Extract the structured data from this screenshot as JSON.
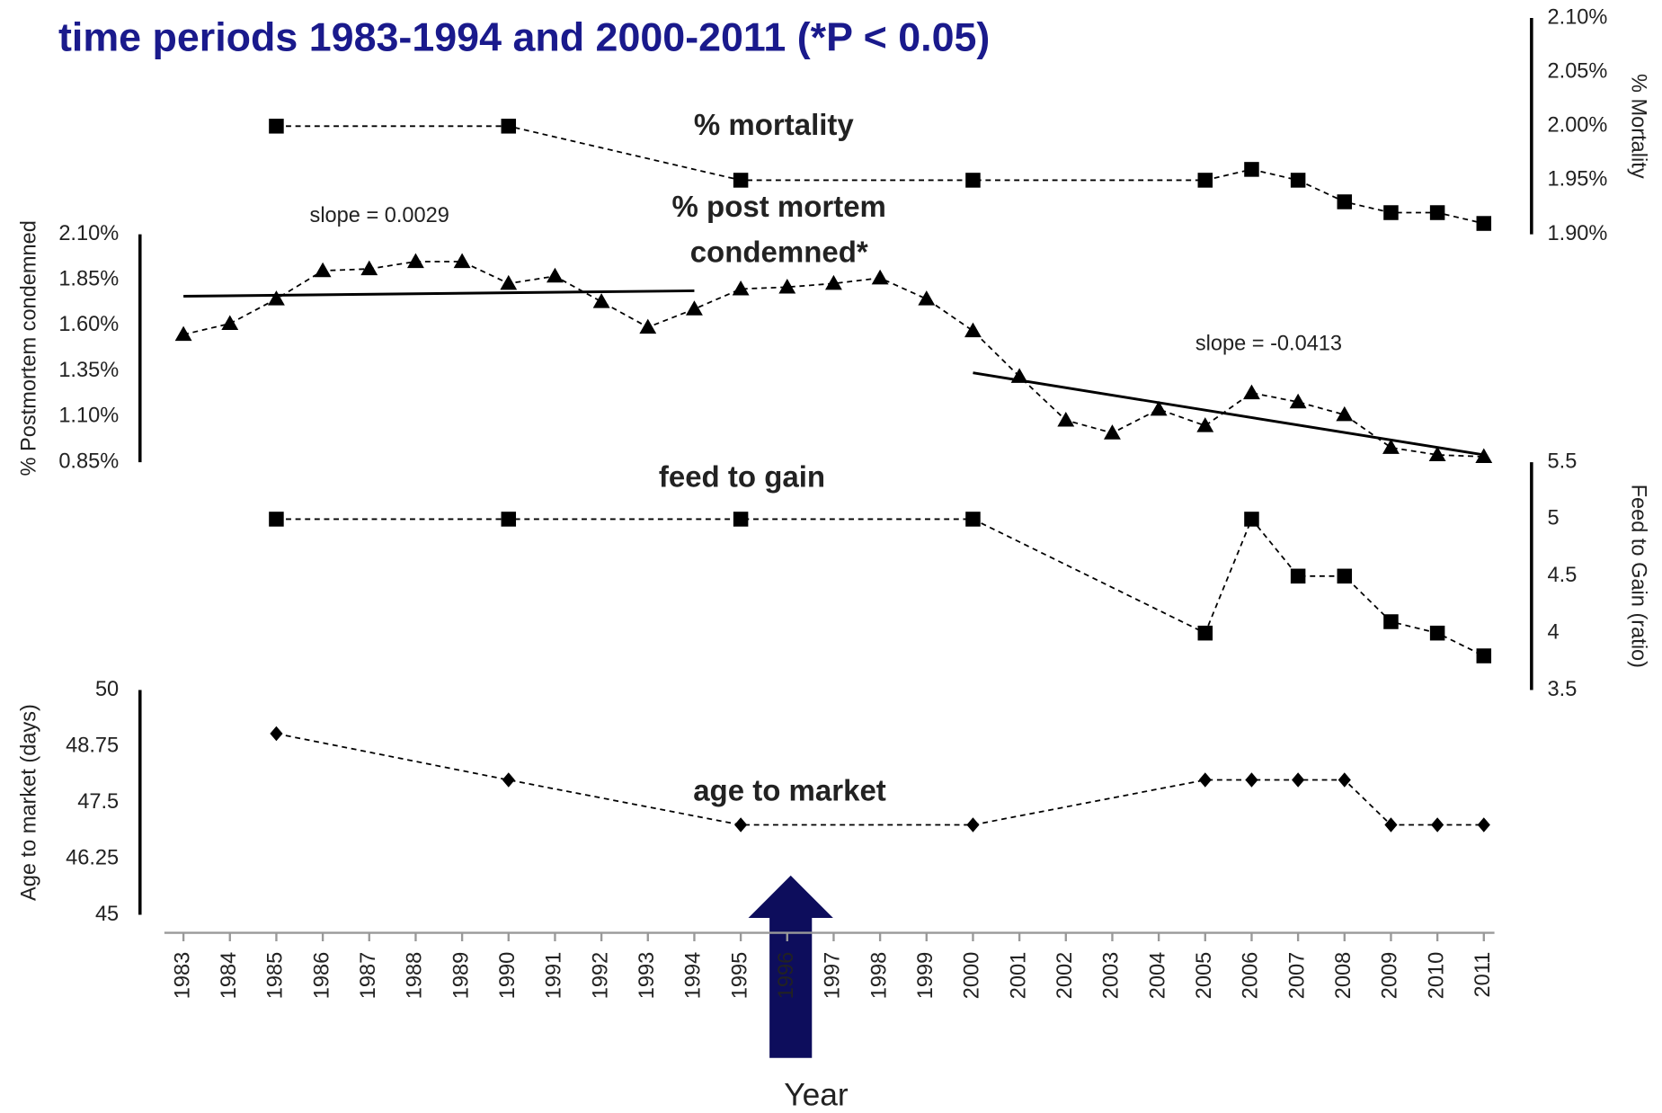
{
  "chart_data": {
    "type": "line",
    "title": "time periods 1983-1994 and 2000-2011 (*P < 0.05)",
    "xlabel": "Year",
    "xlim": [
      1983,
      2011
    ],
    "xticks": [
      1983,
      1984,
      1985,
      1986,
      1987,
      1988,
      1989,
      1990,
      1991,
      1992,
      1993,
      1994,
      1995,
      1996,
      1997,
      1998,
      1999,
      2000,
      2001,
      2002,
      2003,
      2004,
      2005,
      2006,
      2007,
      2008,
      2009,
      2010,
      2011
    ],
    "series": [
      {
        "name": "% mortality",
        "marker": "square",
        "color": "#000000",
        "ylabel": "% Mortality",
        "x": [
          1985,
          1990,
          1995,
          2000,
          2005,
          2006,
          2007,
          2008,
          2009,
          2010,
          2011
        ],
        "values": [
          2.0,
          2.0,
          1.95,
          1.95,
          1.95,
          1.96,
          1.95,
          1.93,
          1.92,
          1.92,
          1.91
        ],
        "ylim": [
          1.9,
          2.1
        ],
        "yticks": [
          {
            "value": 1.9,
            "label": "1.90%"
          },
          {
            "value": 1.95,
            "label": "1.95%"
          },
          {
            "value": 2.0,
            "label": "2.00%"
          },
          {
            "value": 2.05,
            "label": "2.05%"
          },
          {
            "value": 2.1,
            "label": "2.10%"
          }
        ]
      },
      {
        "name": [
          "% post mortem",
          "condemned*"
        ],
        "marker": "triangle",
        "color": "#000000",
        "ylabel": "% Postmortem  condemned",
        "x": [
          1983,
          1984,
          1985,
          1986,
          1987,
          1988,
          1989,
          1990,
          1991,
          1992,
          1993,
          1994,
          1995,
          1996,
          1997,
          1998,
          1999,
          2000,
          2001,
          2002,
          2003,
          2004,
          2005,
          2006,
          2007,
          2008,
          2009,
          2010,
          2011
        ],
        "values": [
          1.55,
          1.61,
          1.745,
          1.9,
          1.91,
          1.95,
          1.95,
          1.83,
          1.87,
          1.73,
          1.59,
          1.69,
          1.8,
          1.81,
          1.83,
          1.86,
          1.745,
          1.57,
          1.32,
          1.08,
          1.01,
          1.14,
          1.05,
          1.23,
          1.18,
          1.11,
          0.93,
          0.89,
          0.88
        ],
        "ylim": [
          0.85,
          2.1
        ],
        "yticks": [
          {
            "value": 0.85,
            "label": "0.85%"
          },
          {
            "value": 1.1,
            "label": "1.10%"
          },
          {
            "value": 1.35,
            "label": "1.35%"
          },
          {
            "value": 1.6,
            "label": "1.60%"
          },
          {
            "value": 1.85,
            "label": "1.85%"
          },
          {
            "value": 2.1,
            "label": "2.10%"
          }
        ],
        "trendlines": [
          {
            "label": "slope = 0.0029",
            "x": [
              1983,
              1994
            ],
            "values": [
              1.76,
              1.79
            ]
          },
          {
            "label": "slope = -0.0413",
            "x": [
              2000,
              2011
            ],
            "values": [
              1.34,
              0.89
            ]
          }
        ]
      },
      {
        "name": "feed to gain",
        "marker": "square",
        "color": "#000000",
        "ylabel": "Feed to Gain (ratio)",
        "x": [
          1985,
          1990,
          1995,
          2000,
          2005,
          2006,
          2007,
          2008,
          2009,
          2010,
          2011
        ],
        "values": [
          5.0,
          5.0,
          5.0,
          5.0,
          4.0,
          5.0,
          4.5,
          4.5,
          4.1,
          4.0,
          3.8
        ],
        "ylim": [
          3.5,
          5.5
        ],
        "yticks": [
          3.5,
          4,
          4.5,
          5,
          5.5
        ]
      },
      {
        "name": "age to market",
        "marker": "diamond",
        "color": "#000000",
        "ylabel": "Age to market (days)",
        "x": [
          1985,
          1990,
          1995,
          2000,
          2005,
          2006,
          2007,
          2008,
          2009,
          2010,
          2011
        ],
        "values": [
          49.03,
          48,
          47,
          47,
          48,
          48,
          48,
          48,
          47,
          47,
          47
        ],
        "ylim": [
          45,
          50
        ],
        "yticks": [
          45,
          46.25,
          47.5,
          48.75,
          50
        ]
      }
    ]
  }
}
